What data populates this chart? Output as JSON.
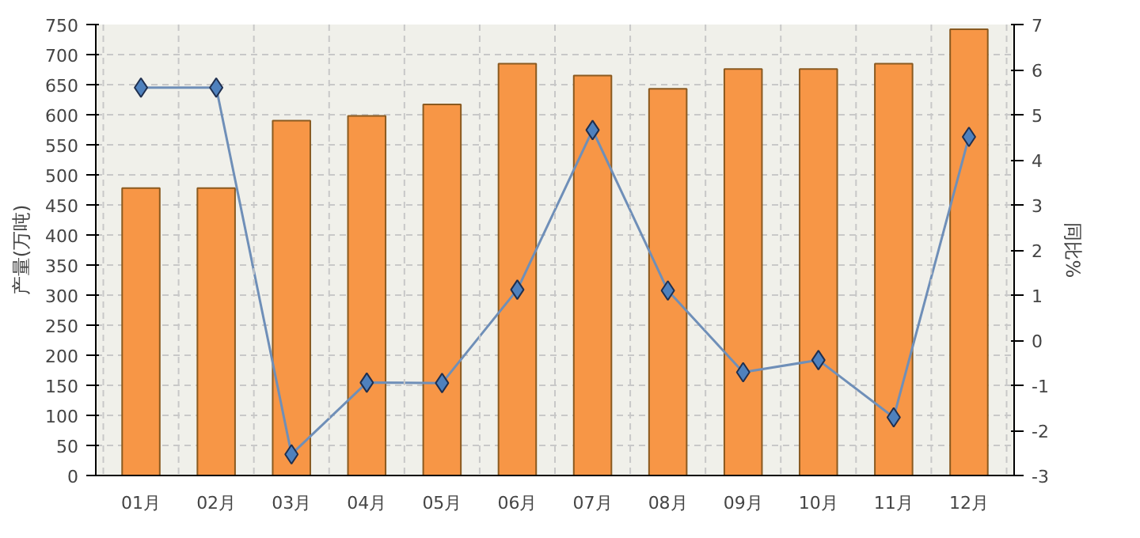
{
  "chart_data": {
    "type": "bar",
    "categories": [
      "01月",
      "02月",
      "03月",
      "04月",
      "05月",
      "06月",
      "07月",
      "08月",
      "09月",
      "10月",
      "11月",
      "12月"
    ],
    "ylabel": "产量(万吨)",
    "y2label": "同比%",
    "series": [
      {
        "color": "#f79646",
        "values": [
          478,
          478,
          590,
          598,
          617,
          685,
          665,
          643,
          676,
          676,
          685,
          742
        ]
      },
      {
        "type": "line",
        "axis": "y2",
        "color": "#6f8fb8",
        "marker": "diamond",
        "values": [
          5.6,
          5.6,
          -2.53,
          -0.94,
          -0.95,
          1.12,
          4.66,
          1.1,
          -0.71,
          -0.44,
          -1.71,
          4.51
        ]
      }
    ],
    "ylim": [
      0,
      750
    ],
    "yticks": [
      0,
      50,
      100,
      150,
      200,
      250,
      300,
      350,
      400,
      450,
      500,
      550,
      600,
      650,
      700,
      750
    ],
    "y2lim": [
      -3,
      7
    ],
    "y2ticks": [
      -3,
      -2,
      -1,
      0,
      1,
      2,
      3,
      4,
      5,
      6,
      7
    ],
    "grid": true
  }
}
